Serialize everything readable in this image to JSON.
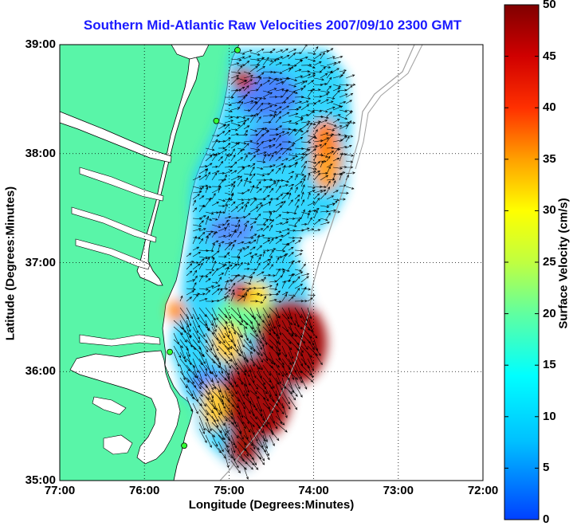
{
  "title": "Southern Mid-Atlantic Raw Velocities 2007/09/10 2300 GMT",
  "x_axis": {
    "label": "Longitude (Degrees:Minutes)",
    "ticks": [
      "77:00",
      "76:00",
      "75:00",
      "74:00",
      "73:00",
      "72:00"
    ]
  },
  "y_axis": {
    "label": "Latitude (Degrees:Minutes)",
    "ticks": [
      "39:00",
      "38:00",
      "37:00",
      "36:00",
      "35:00"
    ]
  },
  "colorbar": {
    "label": "Surface Velocity (cm/s)",
    "ticks": [
      "50",
      "45",
      "40",
      "35",
      "30",
      "25",
      "20",
      "15",
      "10",
      "5",
      "0"
    ],
    "min": 0,
    "max": 50
  },
  "colors": {
    "title": "#1a1aff",
    "land": "#59f5a8",
    "water": "#ffffff",
    "bathymetry": "#a0a0a0"
  },
  "map": {
    "lon_range": [
      -77,
      -72
    ],
    "lat_range": [
      35,
      39
    ],
    "grid": true,
    "stations_lonlat": [
      [
        -74.9,
        38.95
      ],
      [
        -75.15,
        38.3
      ],
      [
        -75.7,
        36.18
      ],
      [
        -75.53,
        35.32
      ]
    ]
  }
}
